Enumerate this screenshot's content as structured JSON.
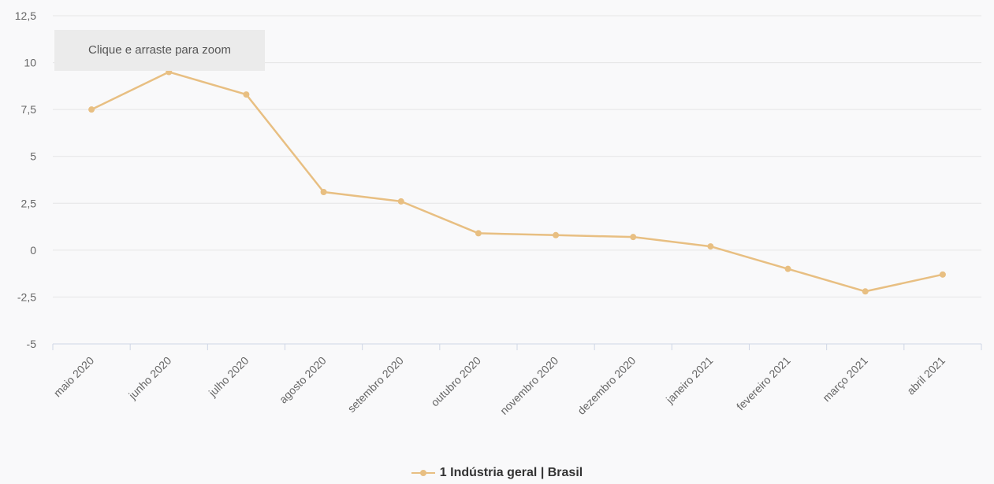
{
  "chart_data": {
    "type": "line",
    "categories": [
      "maio 2020",
      "junho 2020",
      "julho 2020",
      "agosto 2020",
      "setembro 2020",
      "outubro 2020",
      "novembro 2020",
      "dezembro 2020",
      "janeiro 2021",
      "fevereiro 2021",
      "março 2021",
      "abril 2021"
    ],
    "series": [
      {
        "name": "1 Indústria geral | Brasil",
        "values": [
          7.5,
          9.5,
          8.3,
          3.1,
          2.6,
          0.9,
          0.8,
          0.7,
          0.2,
          -1.0,
          -2.2,
          -1.3
        ]
      }
    ],
    "ylim": [
      -5,
      12.5
    ],
    "yticks": [
      -5,
      -2.5,
      0,
      2.5,
      5,
      7.5,
      10,
      12.5
    ],
    "ytick_labels": [
      "-5",
      "-2,5",
      "0",
      "2,5",
      "5",
      "7,5",
      "10",
      "12,5"
    ],
    "grid": true,
    "legend_position": "bottom-center",
    "color": "#e8bf82"
  },
  "zoom_hint": "Clique e arraste para zoom",
  "legend": {
    "label": "1 Indústria geral | Brasil"
  }
}
